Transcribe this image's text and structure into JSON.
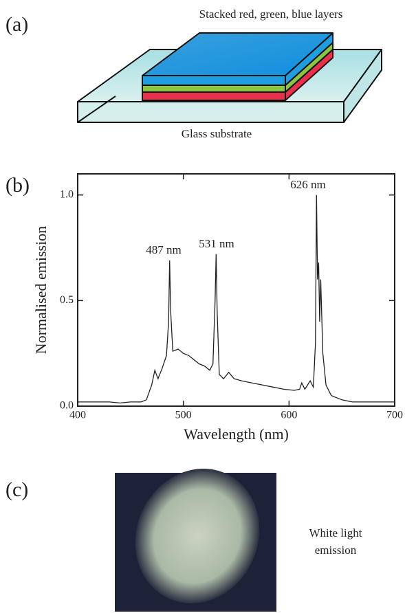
{
  "panel_labels": [
    "(a)",
    "(b)",
    "(c)"
  ],
  "diagram": {
    "top_label": "Stacked red, green, blue layers",
    "bottom_label": "Glass substrate"
  },
  "chart_data": {
    "type": "line",
    "xlabel": "Wavelength (nm)",
    "ylabel": "Normalised emission",
    "xlim": [
      400,
      700
    ],
    "ylim": [
      0,
      1.1
    ],
    "xticks": [
      400,
      500,
      600,
      700
    ],
    "yticks": [
      {
        "value": 0,
        "label": "0.0"
      },
      {
        "value": 0.5,
        "label": "0.5"
      },
      {
        "value": 1,
        "label": "1.0"
      }
    ],
    "annotations": [
      "487 nm",
      "531 nm",
      "626 nm"
    ],
    "color": "#231f20",
    "x": [
      400,
      410,
      420,
      430,
      440,
      450,
      460,
      465,
      470,
      473,
      476,
      480,
      484,
      486,
      487,
      488,
      490,
      495,
      500,
      505,
      510,
      515,
      520,
      525,
      528,
      530,
      531,
      532,
      534,
      538,
      543,
      548,
      555,
      565,
      575,
      585,
      595,
      605,
      610,
      612,
      615,
      620,
      623,
      625,
      626,
      627,
      628,
      629,
      630,
      632,
      635,
      640,
      650,
      660,
      680,
      700
    ],
    "values": [
      0.02,
      0.02,
      0.02,
      0.02,
      0.015,
      0.02,
      0.02,
      0.03,
      0.1,
      0.17,
      0.13,
      0.18,
      0.24,
      0.4,
      0.69,
      0.45,
      0.26,
      0.27,
      0.25,
      0.24,
      0.22,
      0.2,
      0.19,
      0.17,
      0.2,
      0.5,
      0.72,
      0.45,
      0.15,
      0.13,
      0.16,
      0.13,
      0.12,
      0.11,
      0.1,
      0.09,
      0.08,
      0.075,
      0.08,
      0.11,
      0.08,
      0.12,
      0.09,
      0.3,
      1.0,
      0.6,
      0.68,
      0.4,
      0.6,
      0.25,
      0.1,
      0.05,
      0.03,
      0.02,
      0.02,
      0.02
    ]
  },
  "caption_lines": [
    "White light",
    "emission"
  ]
}
